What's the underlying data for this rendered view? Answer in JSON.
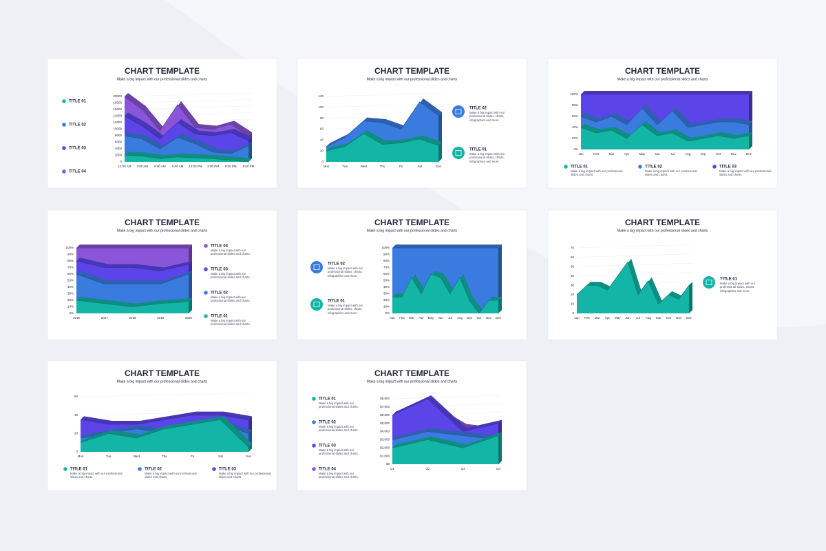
{
  "chart_data": [
    {
      "type": "area",
      "title": "CHART TEMPLATE",
      "subtitle": "Make a big impact with our professional slides and charts",
      "legend": "left",
      "stacked": false,
      "categories": [
        "12:00 AM",
        "3:00 AM",
        "6:00 AM",
        "9:00 AM",
        "12:00 PM",
        "3:00 PM",
        "6:00 PM",
        "9:00 PM"
      ],
      "ylim": [
        0,
        20000
      ],
      "yticks": [
        0,
        2000,
        4000,
        6000,
        8000,
        10000,
        12000,
        14000,
        16000,
        18000,
        20000
      ],
      "series": [
        {
          "name": "TITLE 01",
          "color": "#13b5a6",
          "values": [
            2000,
            1800,
            1000,
            1500,
            1200,
            1000,
            500,
            0
          ]
        },
        {
          "name": "TITLE 02",
          "color": "#3a7be0",
          "values": [
            8000,
            7000,
            4000,
            7500,
            5500,
            3000,
            2500,
            5000
          ]
        },
        {
          "name": "TITLE 03",
          "color": "#5b45e8",
          "values": [
            14000,
            11000,
            7000,
            12000,
            8500,
            8000,
            9000,
            6500
          ]
        },
        {
          "name": "TITLE 04",
          "color": "#8a55d8",
          "values": [
            20000,
            16000,
            9500,
            17500,
            10500,
            10000,
            11500,
            8000
          ]
        }
      ]
    },
    {
      "type": "area",
      "title": "CHART TEMPLATE",
      "subtitle": "Make a big impact with our professional slides and charts",
      "legend": "right",
      "stacked": false,
      "legend_icons": true,
      "legend_order": "reverse",
      "categories": [
        "Mon",
        "Tue",
        "Wed",
        "Thu",
        "Fri",
        "Sat",
        "Sun"
      ],
      "ylim": [
        0,
        120
      ],
      "yticks": [
        0,
        20,
        40,
        60,
        80,
        100,
        120
      ],
      "series": [
        {
          "name": "TITLE 01",
          "description": "Make a big impact with our professional slides, charts, infographics and more.",
          "color": "#13b5a6",
          "values": [
            20,
            28,
            52,
            32,
            35,
            42,
            30
          ]
        },
        {
          "name": "TITLE 02",
          "description": "Make a big impact with our professional slides, charts, infographics and more.",
          "color": "#3a7be0",
          "values": [
            28,
            45,
            75,
            72,
            60,
            110,
            85
          ]
        }
      ]
    },
    {
      "type": "area",
      "title": "CHART TEMPLATE",
      "subtitle": "Make a big impact with our professional slides and charts",
      "legend": "bottom",
      "stacked": true,
      "categories": [
        "Jan",
        "Feb",
        "Mar",
        "Apr",
        "May",
        "Jun",
        "Jul",
        "Aug",
        "Sep",
        "Oct",
        "Nov",
        "Dec"
      ],
      "ylim": [
        0,
        100
      ],
      "yticks": [
        {
          "value": 0,
          "label": "0%"
        },
        {
          "value": 20,
          "label": "20%"
        },
        {
          "value": 40,
          "label": "40%"
        },
        {
          "value": 60,
          "label": "60%"
        },
        {
          "value": 80,
          "label": "80%"
        },
        {
          "value": 100,
          "label": "100%"
        }
      ],
      "series": [
        {
          "name": "TITLE 01",
          "description": "Make a big impact with our professional slides and charts.",
          "color": "#13b5a6",
          "values": [
            40,
            30,
            35,
            20,
            45,
            25,
            30,
            15,
            20,
            25,
            20,
            25
          ]
        },
        {
          "name": "TITLE 02",
          "description": "Make a big impact with our professional slides and charts.",
          "color": "#3a7be0",
          "values": [
            20,
            20,
            25,
            25,
            30,
            20,
            40,
            25,
            25,
            25,
            30,
            20
          ]
        },
        {
          "name": "TITLE 03",
          "description": "Make a big impact with our professional slides and charts.",
          "color": "#5b45e8",
          "values": [
            40,
            50,
            40,
            55,
            25,
            55,
            30,
            60,
            55,
            50,
            50,
            55
          ]
        }
      ]
    },
    {
      "type": "area",
      "title": "CHART TEMPLATE",
      "subtitle": "Make a big impact with our professional slides and charts",
      "legend": "right",
      "stacked": true,
      "legend_order": "reverse",
      "categories": [
        "2016",
        "2017",
        "2018",
        "2019",
        "2020"
      ],
      "ylim": [
        0,
        100
      ],
      "yticks": [
        {
          "value": 0,
          "label": "0%"
        },
        {
          "value": 10,
          "label": "10%"
        },
        {
          "value": 20,
          "label": "20%"
        },
        {
          "value": 30,
          "label": "30%"
        },
        {
          "value": 40,
          "label": "40%"
        },
        {
          "value": 50,
          "label": "50%"
        },
        {
          "value": 60,
          "label": "60%"
        },
        {
          "value": 70,
          "label": "70%"
        },
        {
          "value": 80,
          "label": "80%"
        },
        {
          "value": 90,
          "label": "90%"
        },
        {
          "value": 100,
          "label": "100%"
        }
      ],
      "series": [
        {
          "name": "TITLE 01",
          "description": "Make a big impact with our professional slides and charts.",
          "color": "#13b5a6",
          "values": [
            20,
            15,
            10,
            15,
            18
          ]
        },
        {
          "name": "TITLE 02",
          "description": "Make a big impact with our professional slides and charts.",
          "color": "#3a7be0",
          "values": [
            40,
            30,
            35,
            30,
            42
          ]
        },
        {
          "name": "TITLE 03",
          "description": "Make a big impact with our professional slides and charts.",
          "color": "#5b45e8",
          "values": [
            20,
            25,
            25,
            20,
            15
          ]
        },
        {
          "name": "TITLE 04",
          "description": "Make a big impact with our professional slides and charts.",
          "color": "#8a55d8",
          "values": [
            20,
            30,
            30,
            35,
            25
          ]
        }
      ]
    },
    {
      "type": "area",
      "title": "CHART TEMPLATE",
      "subtitle": "Make a big impact with our professional slides and charts",
      "legend": "left",
      "stacked": true,
      "legend_icons": true,
      "legend_order": "reverse",
      "categories": [
        "Jan",
        "Feb",
        "Mar",
        "Apr",
        "May",
        "Jun",
        "Jul",
        "Aug",
        "Sep",
        "Oct",
        "Nov",
        "Dec"
      ],
      "ylim": [
        0,
        100
      ],
      "yticks": [
        {
          "value": 0,
          "label": "0%"
        },
        {
          "value": 10,
          "label": "10%"
        },
        {
          "value": 20,
          "label": "20%"
        },
        {
          "value": 30,
          "label": "30%"
        },
        {
          "value": 40,
          "label": "40%"
        },
        {
          "value": 50,
          "label": "50%"
        },
        {
          "value": 60,
          "label": "60%"
        },
        {
          "value": 70,
          "label": "70%"
        },
        {
          "value": 80,
          "label": "80%"
        },
        {
          "value": 90,
          "label": "90%"
        },
        {
          "value": 100,
          "label": "100%"
        }
      ],
      "series": [
        {
          "name": "TITLE 01",
          "description": "Make a big impact with our professional slides, charts, infographics and more.",
          "color": "#13b5a6",
          "values": [
            25,
            25,
            55,
            30,
            60,
            55,
            30,
            55,
            20,
            0,
            20,
            20
          ]
        },
        {
          "name": "TITLE 02",
          "description": "Make a big impact with our professional slides, charts, infographics and more.",
          "color": "#3a7be0",
          "values": [
            75,
            75,
            45,
            70,
            40,
            45,
            70,
            45,
            80,
            100,
            80,
            80
          ]
        }
      ]
    },
    {
      "type": "area",
      "title": "CHART TEMPLATE",
      "subtitle": "Make a big impact with our professional slides and charts",
      "legend": "right",
      "stacked": false,
      "legend_icons": true,
      "categories": [
        "Jan",
        "Feb",
        "Mar",
        "Apr",
        "May",
        "Jun",
        "Jul",
        "Aug",
        "Sep",
        "Oct",
        "Nov",
        "Dec"
      ],
      "ylim": [
        0,
        70
      ],
      "yticks": [
        0,
        10,
        20,
        30,
        40,
        50,
        60,
        70
      ],
      "series": [
        {
          "name": "TITLE 01",
          "description": "Make a big impact with our professional slides, charts, infographics and more.",
          "color": "#13b5a6",
          "values": [
            20,
            30,
            30,
            25,
            40,
            55,
            20,
            35,
            10,
            20,
            15,
            30
          ]
        }
      ]
    },
    {
      "type": "area",
      "title": "CHART TEMPLATE",
      "subtitle": "Make a big impact with our professional slides and charts",
      "legend": "bottom",
      "stacked": false,
      "categories": [
        "Mon",
        "Tue",
        "Wed",
        "Thu",
        "Fri",
        "Sat",
        "Sun"
      ],
      "ylim": [
        0,
        60
      ],
      "yticks": [
        0,
        20,
        40,
        60
      ],
      "series": [
        {
          "name": "TITLE 01",
          "description": "Make a big impact with our professional slides and charts.",
          "color": "#13b5a6",
          "values": [
            10,
            20,
            15,
            25,
            30,
            35,
            5
          ]
        },
        {
          "name": "TITLE 02",
          "description": "Make a big impact with our professional slides and charts.",
          "color": "#3a7be0",
          "values": [
            15,
            20,
            25,
            20,
            28,
            30,
            20
          ]
        },
        {
          "name": "TITLE 03",
          "description": "Make a big impact with our professional slides and charts.",
          "color": "#5b45e8",
          "values": [
            35,
            30,
            30,
            35,
            40,
            40,
            35
          ]
        }
      ]
    },
    {
      "type": "area",
      "title": "CHART TEMPLATE",
      "subtitle": "Make a big impact with our professional slides and charts",
      "legend": "left",
      "stacked": false,
      "categories": [
        "Q1",
        "Q2",
        "Q3",
        "Q4"
      ],
      "ylim": [
        0,
        8000
      ],
      "yticks": [
        {
          "value": 0,
          "label": "$0"
        },
        {
          "value": 1000,
          "label": "$1,000"
        },
        {
          "value": 2000,
          "label": "$2,000"
        },
        {
          "value": 3000,
          "label": "$3,000"
        },
        {
          "value": 4000,
          "label": "$4,000"
        },
        {
          "value": 5000,
          "label": "$5,000"
        },
        {
          "value": 6000,
          "label": "$6,000"
        },
        {
          "value": 7000,
          "label": "$7,000"
        },
        {
          "value": 8000,
          "label": "$8,000"
        }
      ],
      "series": [
        {
          "name": "TITLE 01",
          "description": "Make a big impact with our professional slides and charts.",
          "color": "#13b5a6",
          "values": [
            2000,
            3000,
            2000,
            3500
          ]
        },
        {
          "name": "TITLE 02",
          "description": "Make a big impact with our professional slides and charts.",
          "color": "#3a7be0",
          "values": [
            3000,
            4000,
            3500,
            3000
          ]
        },
        {
          "name": "TITLE 03",
          "description": "Make a big impact with our professional slides and charts.",
          "color": "#5b45e8",
          "values": [
            6000,
            8000,
            4000,
            5000
          ]
        },
        {
          "name": "TITLE 04",
          "description": "Make a big impact with our professional slides and charts.",
          "color": "#8a55d8",
          "values": [
            5000,
            7000,
            4500,
            4000
          ]
        }
      ]
    }
  ]
}
